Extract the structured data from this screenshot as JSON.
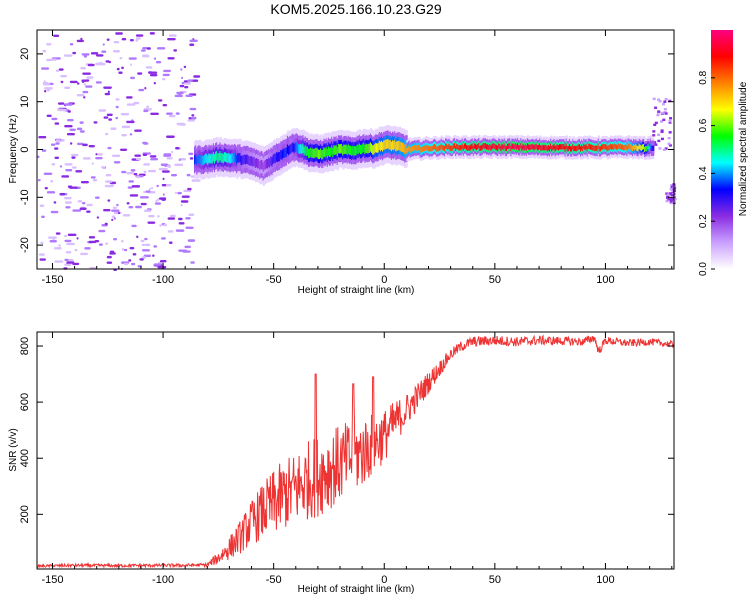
{
  "title": "KOM5.2025.166.10.23.G29",
  "chart_data": [
    {
      "type": "heatmap",
      "xlabel": "Height of straight line (km)",
      "ylabel": "Frequency (Hz)",
      "xlim": [
        -157,
        131
      ],
      "ylim": [
        -25,
        25
      ],
      "x_ticks": [
        -150,
        -100,
        -50,
        0,
        50,
        100
      ],
      "y_ticks": [
        -20,
        -10,
        0,
        10,
        20
      ],
      "grid": false,
      "colormap": [
        "#ffffff",
        "#c9a0ff",
        "#8a2be2",
        "#0000ff",
        "#00ffff",
        "#00ff00",
        "#ffff00",
        "#ff8000",
        "#ff0000",
        "#ff0080"
      ],
      "colorbar": {
        "label": "Normalized spectral amplitude",
        "ticks": [
          0.0,
          0.2,
          0.4,
          0.6,
          0.8
        ],
        "tick_labels": [
          "0.0",
          "0.2",
          "0.4",
          "0.6",
          "0.8"
        ],
        "range": [
          0,
          1
        ]
      },
      "trace": {
        "x": [
          -86,
          -80,
          -75,
          -70,
          -65,
          -60,
          -55,
          -50,
          -45,
          -42,
          -38,
          -35,
          -30,
          -25,
          -20,
          -15,
          -10,
          -5,
          0,
          5,
          10,
          20,
          30,
          40,
          60,
          80,
          100,
          110,
          118,
          121
        ],
        "y": [
          -2.2,
          -2.0,
          -1.5,
          -1.8,
          -2.0,
          -2.5,
          -3.5,
          -2.0,
          -0.5,
          0.5,
          0.3,
          -0.5,
          -1.0,
          -0.5,
          0.0,
          -0.3,
          0.3,
          0.2,
          1.0,
          0.8,
          0.0,
          0.3,
          0.5,
          0.5,
          0.5,
          0.4,
          0.4,
          0.5,
          0.3,
          0.5
        ],
        "amplitude": [
          0.35,
          0.45,
          0.5,
          0.45,
          0.3,
          0.25,
          0.2,
          0.3,
          0.35,
          0.3,
          0.45,
          0.55,
          0.6,
          0.55,
          0.6,
          0.55,
          0.55,
          0.65,
          0.7,
          0.7,
          0.75,
          0.8,
          0.85,
          0.9,
          0.95,
          0.9,
          0.85,
          0.8,
          0.6,
          0.3
        ]
      },
      "noise_region": {
        "x_range": [
          -157,
          -86
        ],
        "y_range": [
          -25,
          25
        ],
        "amplitude_max": 0.3
      },
      "edge_features": [
        {
          "x_range": [
            121,
            129
          ],
          "y_range": [
            0,
            11
          ],
          "amplitude": 0.25
        },
        {
          "x_range": [
            127,
            131
          ],
          "y_range": [
            -11,
            -7
          ],
          "amplitude": 0.2
        }
      ]
    },
    {
      "type": "line",
      "xlabel": "Height of straight line (km)",
      "ylabel": "SNR (v/v)",
      "xlim": [
        -157,
        131
      ],
      "ylim": [
        5,
        850
      ],
      "x_ticks": [
        -150,
        -100,
        -50,
        0,
        50,
        100
      ],
      "y_ticks": [
        200,
        400,
        600,
        800
      ],
      "grid": false,
      "color": "#ee3333",
      "x": [
        -157,
        -140,
        -120,
        -100,
        -90,
        -80,
        -75,
        -70,
        -65,
        -60,
        -55,
        -50,
        -45,
        -40,
        -35,
        -30,
        -25,
        -20,
        -15,
        -10,
        -5,
        0,
        5,
        10,
        15,
        20,
        25,
        30,
        35,
        40,
        50,
        60,
        70,
        80,
        90,
        95,
        97,
        100,
        110,
        120,
        131
      ],
      "y": [
        15,
        18,
        17,
        18,
        18,
        20,
        45,
        80,
        120,
        170,
        210,
        240,
        270,
        290,
        320,
        340,
        360,
        380,
        400,
        420,
        450,
        480,
        530,
        570,
        620,
        670,
        720,
        770,
        800,
        815,
        820,
        815,
        820,
        818,
        815,
        830,
        780,
        820,
        810,
        815,
        805
      ],
      "noise": {
        "x_range": [
          -157,
          131
        ],
        "amplitude": [
          {
            "x": -157,
            "a": 5
          },
          {
            "x": -80,
            "a": 6
          },
          {
            "x": -65,
            "a": 60
          },
          {
            "x": -50,
            "a": 120
          },
          {
            "x": -30,
            "a": 150
          },
          {
            "x": -10,
            "a": 130
          },
          {
            "x": 10,
            "a": 60
          },
          {
            "x": 30,
            "a": 20
          },
          {
            "x": 131,
            "a": 12
          }
        ]
      },
      "spikes": [
        {
          "x": -31,
          "y": 700
        },
        {
          "x": -14,
          "y": 665
        },
        {
          "x": -5,
          "y": 690
        }
      ]
    }
  ]
}
